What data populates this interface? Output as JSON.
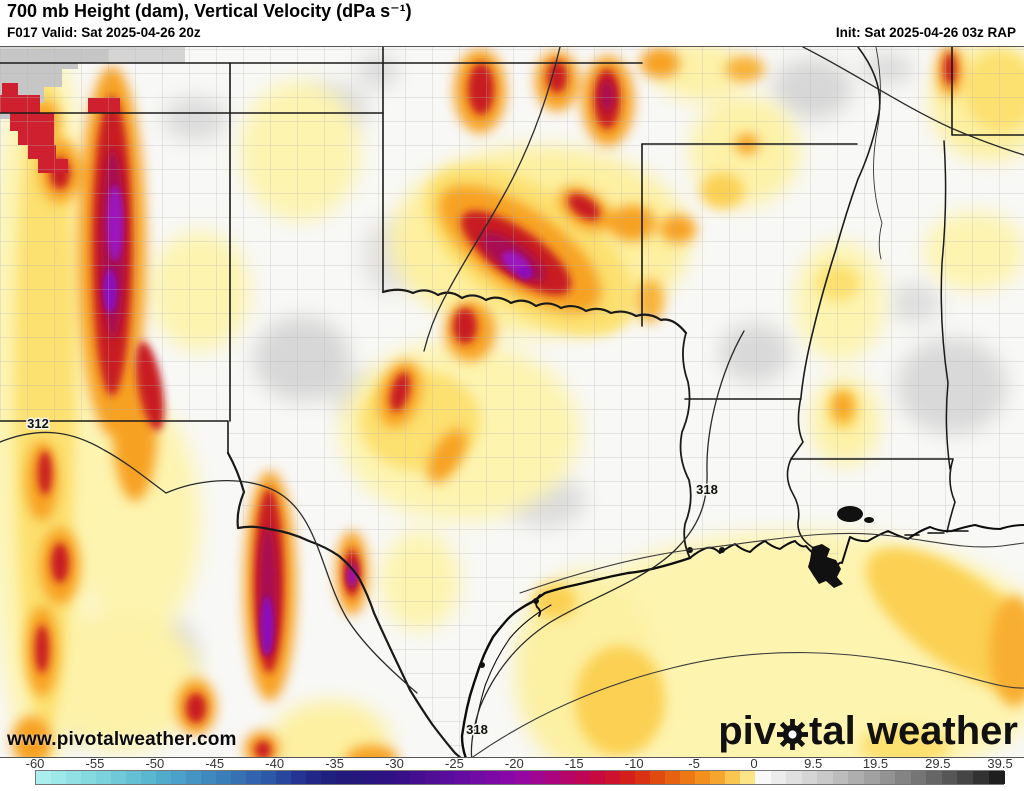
{
  "header": {
    "title": "700 mb Height (dam), Vertical Velocity (dPa s⁻¹)",
    "valid": "F017 Valid: Sat 2025-04-26 20z",
    "init": "Init: Sat 2025-04-26 03z RAP"
  },
  "map": {
    "watermark": "www.pivotalweather.com",
    "logo": {
      "part1": "piv",
      "part2": "tal weather"
    },
    "contour_labels": [
      {
        "text": "312"
      },
      {
        "text": "318"
      },
      {
        "text": "318"
      }
    ]
  },
  "colorbar": {
    "ticks": [
      {
        "v": -60,
        "label": "-60"
      },
      {
        "v": -55,
        "label": "-55"
      },
      {
        "v": -50,
        "label": "-50"
      },
      {
        "v": -45,
        "label": "-45"
      },
      {
        "v": -40,
        "label": "-40"
      },
      {
        "v": -35,
        "label": "-35"
      },
      {
        "v": -30,
        "label": "-30"
      },
      {
        "v": -25,
        "label": "-25"
      },
      {
        "v": -20,
        "label": "-20"
      },
      {
        "v": -15,
        "label": "-15"
      },
      {
        "v": -10,
        "label": "-10"
      },
      {
        "v": -5,
        "label": "-5"
      },
      {
        "v": 0,
        "label": "0"
      },
      {
        "v": 9.5,
        "label": "9.5"
      },
      {
        "v": 19.5,
        "label": "19.5"
      },
      {
        "v": 29.5,
        "label": "29.5"
      },
      {
        "v": 39.5,
        "label": "39.5"
      }
    ],
    "stops": [
      [
        -60,
        "#b0f2f0"
      ],
      [
        -55,
        "#7fd6dc"
      ],
      [
        -50,
        "#54b2cd"
      ],
      [
        -45,
        "#3b84bc"
      ],
      [
        -40,
        "#2b50a4"
      ],
      [
        -37.5,
        "#23298c"
      ],
      [
        -35,
        "#1e1c78"
      ],
      [
        -30,
        "#330f86"
      ],
      [
        -25,
        "#5e0da0"
      ],
      [
        -20,
        "#8e07a8"
      ],
      [
        -17.5,
        "#a40589"
      ],
      [
        -15,
        "#ba0460"
      ],
      [
        -12.5,
        "#cb0a34"
      ],
      [
        -10,
        "#d52513"
      ],
      [
        -7.5,
        "#e3560e"
      ],
      [
        -5,
        "#f08314"
      ],
      [
        -2.5,
        "#f8b237"
      ],
      [
        -1.25,
        "#fbd768"
      ],
      [
        -0.01,
        "#fdf2a6"
      ],
      [
        0,
        "#ffffff"
      ],
      [
        2.5,
        "#f2f2f2"
      ],
      [
        5,
        "#e6e6e6"
      ],
      [
        10,
        "#cfcfcf"
      ],
      [
        15,
        "#b5b5b5"
      ],
      [
        20,
        "#9a9a9a"
      ],
      [
        25,
        "#7d7d7d"
      ],
      [
        30,
        "#5e5e5e"
      ],
      [
        35,
        "#3c3c3c"
      ],
      [
        40,
        "#141414"
      ]
    ]
  }
}
